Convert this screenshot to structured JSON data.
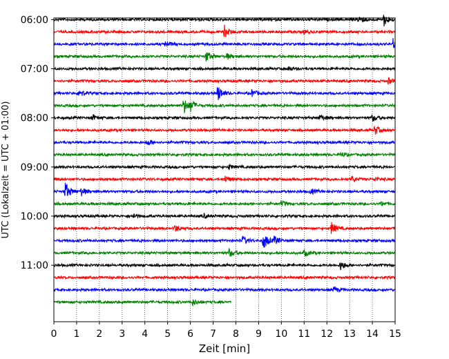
{
  "chart_data": {
    "type": "line",
    "title": "",
    "xlabel": "Zeit  [min]",
    "ylabel": "UTC (Lokalzeit = UTC + 01:00)",
    "xlim": [
      0,
      15
    ],
    "x_ticks": [
      "0",
      "1",
      "2",
      "3",
      "4",
      "5",
      "6",
      "7",
      "8",
      "9",
      "10",
      "11",
      "12",
      "13",
      "14",
      "15"
    ],
    "y_ticks": [
      "06:00",
      "07:00",
      "08:00",
      "09:00",
      "10:00",
      "11:00"
    ],
    "grid": "vertical-dotted",
    "trace_colors": [
      "#000000",
      "#ff0000",
      "#0000ff",
      "#008000"
    ],
    "traces": [
      {
        "start": "06:00",
        "color": "#000000",
        "end_min": 15,
        "events": [
          [
            13.4,
            6
          ],
          [
            14.5,
            9
          ]
        ]
      },
      {
        "start": "06:15",
        "color": "#ff0000",
        "end_min": 15,
        "events": [
          [
            7.5,
            9
          ],
          [
            11.0,
            3
          ]
        ]
      },
      {
        "start": "06:30",
        "color": "#0000ff",
        "end_min": 15,
        "events": [
          [
            4.9,
            4
          ],
          [
            14.9,
            8
          ]
        ]
      },
      {
        "start": "06:45",
        "color": "#008000",
        "end_min": 15,
        "events": [
          [
            6.7,
            8
          ],
          [
            7.6,
            4
          ]
        ]
      },
      {
        "start": "07:00",
        "color": "#000000",
        "end_min": 15,
        "events": [
          [
            10.3,
            3
          ]
        ]
      },
      {
        "start": "07:15",
        "color": "#ff0000",
        "end_min": 15,
        "events": [
          [
            14.7,
            4
          ]
        ]
      },
      {
        "start": "07:30",
        "color": "#0000ff",
        "end_min": 15,
        "events": [
          [
            1.1,
            6
          ],
          [
            7.2,
            12
          ],
          [
            8.7,
            5
          ]
        ]
      },
      {
        "start": "07:45",
        "color": "#008000",
        "end_min": 15,
        "events": [
          [
            5.7,
            12
          ],
          [
            6.0,
            7
          ]
        ]
      },
      {
        "start": "08:00",
        "color": "#000000",
        "end_min": 15,
        "events": [
          [
            1.7,
            4
          ],
          [
            11.7,
            5
          ],
          [
            14.0,
            5
          ]
        ]
      },
      {
        "start": "08:15",
        "color": "#ff0000",
        "end_min": 15,
        "events": [
          [
            14.1,
            7
          ]
        ]
      },
      {
        "start": "08:30",
        "color": "#0000ff",
        "end_min": 15,
        "events": [
          [
            4.1,
            5
          ]
        ]
      },
      {
        "start": "08:45",
        "color": "#008000",
        "end_min": 15,
        "events": [
          [
            12.6,
            4
          ]
        ]
      },
      {
        "start": "09:00",
        "color": "#000000",
        "end_min": 15,
        "events": [
          [
            7.7,
            3
          ]
        ]
      },
      {
        "start": "09:15",
        "color": "#ff0000",
        "end_min": 15,
        "events": [
          [
            7.5,
            5
          ],
          [
            13.1,
            4
          ],
          [
            14.1,
            3
          ]
        ]
      },
      {
        "start": "09:30",
        "color": "#0000ff",
        "end_min": 15,
        "events": [
          [
            0.5,
            14
          ],
          [
            1.2,
            6
          ],
          [
            11.3,
            4
          ]
        ]
      },
      {
        "start": "09:45",
        "color": "#008000",
        "end_min": 15,
        "events": [
          [
            10.0,
            4
          ],
          [
            14.4,
            3
          ]
        ]
      },
      {
        "start": "10:00",
        "color": "#000000",
        "end_min": 15,
        "events": [
          [
            3.5,
            4
          ],
          [
            6.6,
            3
          ]
        ]
      },
      {
        "start": "10:15",
        "color": "#ff0000",
        "end_min": 15,
        "events": [
          [
            5.3,
            5
          ],
          [
            12.2,
            9
          ]
        ]
      },
      {
        "start": "10:30",
        "color": "#0000ff",
        "end_min": 15,
        "events": [
          [
            8.3,
            6
          ],
          [
            9.2,
            13
          ],
          [
            9.7,
            6
          ]
        ]
      },
      {
        "start": "10:45",
        "color": "#008000",
        "end_min": 15,
        "events": [
          [
            7.7,
            6
          ],
          [
            11.0,
            5
          ]
        ]
      },
      {
        "start": "11:00",
        "color": "#000000",
        "end_min": 15,
        "events": [
          [
            12.6,
            7
          ]
        ]
      },
      {
        "start": "11:15",
        "color": "#ff0000",
        "end_min": 15,
        "events": []
      },
      {
        "start": "11:30",
        "color": "#0000ff",
        "end_min": 15,
        "events": [
          [
            12.3,
            4
          ]
        ]
      },
      {
        "start": "11:45",
        "color": "#008000",
        "end_min": 7.8,
        "events": [
          [
            6.1,
            4
          ]
        ]
      }
    ]
  }
}
